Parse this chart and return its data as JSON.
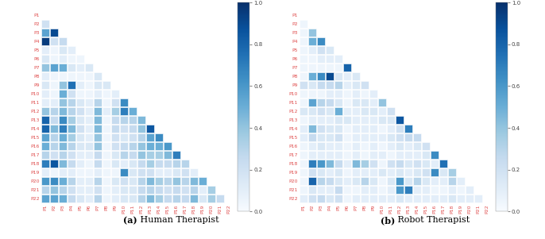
{
  "n": 22,
  "labels": [
    "P1",
    "P2",
    "P3",
    "P4",
    "P5",
    "P6",
    "P7",
    "P8",
    "P9",
    "P10",
    "P11",
    "P12",
    "P13",
    "P14",
    "P15",
    "P16",
    "P17",
    "P18",
    "P19",
    "P20",
    "P21",
    "P22"
  ],
  "title_a_bold": "(a)",
  "title_a_regular": " Human Therapist",
  "title_b_bold": "(b)",
  "title_b_regular": " Robot Therapist",
  "cmap": "Blues",
  "vmin": 0.0,
  "vmax": 1.0,
  "colorbar_ticks": [
    0.0,
    0.2,
    0.4,
    0.6,
    0.8,
    1.0
  ],
  "label_color": "#e05050",
  "figsize": [
    6.86,
    3.01
  ],
  "dpi": 100,
  "human_matrix": [
    [
      0,
      0,
      0,
      0,
      0,
      0,
      0,
      0,
      0,
      0,
      0,
      0,
      0,
      0,
      0,
      0,
      0,
      0,
      0,
      0,
      0,
      0
    ],
    [
      0.2,
      0,
      0,
      0,
      0,
      0,
      0,
      0,
      0,
      0,
      0,
      0,
      0,
      0,
      0,
      0,
      0,
      0,
      0,
      0,
      0,
      0
    ],
    [
      0.55,
      0.9,
      0,
      0,
      0,
      0,
      0,
      0,
      0,
      0,
      0,
      0,
      0,
      0,
      0,
      0,
      0,
      0,
      0,
      0,
      0,
      0
    ],
    [
      0.95,
      0.2,
      0.25,
      0,
      0,
      0,
      0,
      0,
      0,
      0,
      0,
      0,
      0,
      0,
      0,
      0,
      0,
      0,
      0,
      0,
      0,
      0
    ],
    [
      0.1,
      0.05,
      0.15,
      0.1,
      0,
      0,
      0,
      0,
      0,
      0,
      0,
      0,
      0,
      0,
      0,
      0,
      0,
      0,
      0,
      0,
      0,
      0
    ],
    [
      0.15,
      0.05,
      0.1,
      0.05,
      0.05,
      0,
      0,
      0,
      0,
      0,
      0,
      0,
      0,
      0,
      0,
      0,
      0,
      0,
      0,
      0,
      0,
      0
    ],
    [
      0.4,
      0.55,
      0.5,
      0.15,
      0.1,
      0.15,
      0,
      0,
      0,
      0,
      0,
      0,
      0,
      0,
      0,
      0,
      0,
      0,
      0,
      0,
      0,
      0
    ],
    [
      0.1,
      0.05,
      0.05,
      0.05,
      0.05,
      0.05,
      0.15,
      0,
      0,
      0,
      0,
      0,
      0,
      0,
      0,
      0,
      0,
      0,
      0,
      0,
      0,
      0
    ],
    [
      0.15,
      0.05,
      0.4,
      0.75,
      0.1,
      0.05,
      0.15,
      0.15,
      0,
      0,
      0,
      0,
      0,
      0,
      0,
      0,
      0,
      0,
      0,
      0,
      0,
      0
    ],
    [
      0.1,
      0.05,
      0.5,
      0.2,
      0.05,
      0.05,
      0.1,
      0.05,
      0.1,
      0,
      0,
      0,
      0,
      0,
      0,
      0,
      0,
      0,
      0,
      0,
      0,
      0
    ],
    [
      0.1,
      0.1,
      0.4,
      0.3,
      0.15,
      0.1,
      0.3,
      0.05,
      0.2,
      0.65,
      0,
      0,
      0,
      0,
      0,
      0,
      0,
      0,
      0,
      0,
      0,
      0
    ],
    [
      0.4,
      0.3,
      0.45,
      0.3,
      0.2,
      0.1,
      0.45,
      0.1,
      0.35,
      0.7,
      0.5,
      0,
      0,
      0,
      0,
      0,
      0,
      0,
      0,
      0,
      0,
      0
    ],
    [
      0.8,
      0.25,
      0.65,
      0.35,
      0.15,
      0.1,
      0.45,
      0.05,
      0.25,
      0.3,
      0.3,
      0.45,
      0,
      0,
      0,
      0,
      0,
      0,
      0,
      0,
      0,
      0
    ],
    [
      0.8,
      0.45,
      0.7,
      0.45,
      0.2,
      0.1,
      0.45,
      0.05,
      0.25,
      0.2,
      0.25,
      0.4,
      0.85,
      0,
      0,
      0,
      0,
      0,
      0,
      0,
      0,
      0
    ],
    [
      0.55,
      0.3,
      0.5,
      0.35,
      0.15,
      0.1,
      0.4,
      0.05,
      0.2,
      0.15,
      0.2,
      0.3,
      0.55,
      0.65,
      0,
      0,
      0,
      0,
      0,
      0,
      0,
      0
    ],
    [
      0.5,
      0.3,
      0.45,
      0.3,
      0.15,
      0.15,
      0.4,
      0.05,
      0.2,
      0.25,
      0.3,
      0.4,
      0.5,
      0.5,
      0.6,
      0,
      0,
      0,
      0,
      0,
      0,
      0
    ],
    [
      0.3,
      0.2,
      0.3,
      0.2,
      0.1,
      0.1,
      0.25,
      0.05,
      0.15,
      0.3,
      0.25,
      0.4,
      0.35,
      0.35,
      0.45,
      0.7,
      0,
      0,
      0,
      0,
      0,
      0
    ],
    [
      0.7,
      0.85,
      0.45,
      0.25,
      0.1,
      0.05,
      0.25,
      0.05,
      0.15,
      0.1,
      0.15,
      0.25,
      0.35,
      0.25,
      0.25,
      0.3,
      0.3,
      0,
      0,
      0,
      0,
      0
    ],
    [
      0.1,
      0.05,
      0.1,
      0.1,
      0.05,
      0.05,
      0.1,
      0.05,
      0.05,
      0.65,
      0.15,
      0.2,
      0.2,
      0.1,
      0.1,
      0.15,
      0.2,
      0.1,
      0,
      0,
      0,
      0
    ],
    [
      0.6,
      0.65,
      0.5,
      0.3,
      0.1,
      0.1,
      0.3,
      0.05,
      0.15,
      0.2,
      0.15,
      0.3,
      0.45,
      0.35,
      0.3,
      0.4,
      0.3,
      0.45,
      0.5,
      0,
      0,
      0
    ],
    [
      0.3,
      0.4,
      0.3,
      0.2,
      0.1,
      0.1,
      0.2,
      0.05,
      0.1,
      0.15,
      0.15,
      0.25,
      0.3,
      0.25,
      0.2,
      0.25,
      0.2,
      0.3,
      0.1,
      0.35,
      0,
      0
    ],
    [
      0.55,
      0.55,
      0.5,
      0.25,
      0.15,
      0.1,
      0.3,
      0.05,
      0.1,
      0.15,
      0.15,
      0.3,
      0.45,
      0.35,
      0.25,
      0.3,
      0.25,
      0.45,
      0.15,
      0.35,
      0.25,
      0
    ]
  ],
  "robot_matrix": [
    [
      0,
      0,
      0,
      0,
      0,
      0,
      0,
      0,
      0,
      0,
      0,
      0,
      0,
      0,
      0,
      0,
      0,
      0,
      0,
      0,
      0,
      0
    ],
    [
      0.05,
      0,
      0,
      0,
      0,
      0,
      0,
      0,
      0,
      0,
      0,
      0,
      0,
      0,
      0,
      0,
      0,
      0,
      0,
      0,
      0,
      0
    ],
    [
      0.05,
      0.4,
      0,
      0,
      0,
      0,
      0,
      0,
      0,
      0,
      0,
      0,
      0,
      0,
      0,
      0,
      0,
      0,
      0,
      0,
      0,
      0
    ],
    [
      0.05,
      0.5,
      0.65,
      0,
      0,
      0,
      0,
      0,
      0,
      0,
      0,
      0,
      0,
      0,
      0,
      0,
      0,
      0,
      0,
      0,
      0,
      0
    ],
    [
      0.05,
      0.1,
      0.2,
      0.15,
      0,
      0,
      0,
      0,
      0,
      0,
      0,
      0,
      0,
      0,
      0,
      0,
      0,
      0,
      0,
      0,
      0,
      0
    ],
    [
      0.05,
      0.05,
      0.1,
      0.1,
      0.1,
      0,
      0,
      0,
      0,
      0,
      0,
      0,
      0,
      0,
      0,
      0,
      0,
      0,
      0,
      0,
      0,
      0
    ],
    [
      0.05,
      0.05,
      0.05,
      0.05,
      0.05,
      0.8,
      0,
      0,
      0,
      0,
      0,
      0,
      0,
      0,
      0,
      0,
      0,
      0,
      0,
      0,
      0,
      0
    ],
    [
      0.05,
      0.5,
      0.65,
      0.9,
      0.15,
      0.1,
      0.15,
      0,
      0,
      0,
      0,
      0,
      0,
      0,
      0,
      0,
      0,
      0,
      0,
      0,
      0,
      0
    ],
    [
      0.2,
      0.15,
      0.25,
      0.25,
      0.3,
      0.1,
      0.15,
      0.2,
      0,
      0,
      0,
      0,
      0,
      0,
      0,
      0,
      0,
      0,
      0,
      0,
      0,
      0
    ],
    [
      0.05,
      0.05,
      0.05,
      0.1,
      0.1,
      0.05,
      0.1,
      0.05,
      0.1,
      0,
      0,
      0,
      0,
      0,
      0,
      0,
      0,
      0,
      0,
      0,
      0,
      0
    ],
    [
      0.05,
      0.55,
      0.3,
      0.25,
      0.15,
      0.05,
      0.15,
      0.15,
      0.1,
      0.4,
      0,
      0,
      0,
      0,
      0,
      0,
      0,
      0,
      0,
      0,
      0,
      0
    ],
    [
      0.15,
      0.15,
      0.2,
      0.15,
      0.5,
      0.1,
      0.1,
      0.15,
      0.15,
      0.1,
      0.2,
      0,
      0,
      0,
      0,
      0,
      0,
      0,
      0,
      0,
      0,
      0
    ],
    [
      0.05,
      0.1,
      0.1,
      0.1,
      0.15,
      0.15,
      0.1,
      0.1,
      0.1,
      0.15,
      0.15,
      0.85,
      0,
      0,
      0,
      0,
      0,
      0,
      0,
      0,
      0,
      0
    ],
    [
      0.1,
      0.45,
      0.2,
      0.15,
      0.15,
      0.05,
      0.1,
      0.1,
      0.1,
      0.05,
      0.1,
      0.2,
      0.7,
      0,
      0,
      0,
      0,
      0,
      0,
      0,
      0,
      0
    ],
    [
      0.1,
      0.25,
      0.15,
      0.15,
      0.2,
      0.05,
      0.1,
      0.1,
      0.1,
      0.1,
      0.15,
      0.2,
      0.25,
      0.25,
      0,
      0,
      0,
      0,
      0,
      0,
      0,
      0
    ],
    [
      0.05,
      0.1,
      0.15,
      0.1,
      0.1,
      0.05,
      0.1,
      0.05,
      0.1,
      0.05,
      0.1,
      0.15,
      0.1,
      0.15,
      0.2,
      0,
      0,
      0,
      0,
      0,
      0,
      0
    ],
    [
      0.05,
      0.1,
      0.1,
      0.1,
      0.1,
      0.05,
      0.1,
      0.05,
      0.1,
      0.1,
      0.05,
      0.1,
      0.1,
      0.1,
      0.15,
      0.65,
      0,
      0,
      0,
      0,
      0,
      0
    ],
    [
      0.05,
      0.7,
      0.6,
      0.45,
      0.25,
      0.1,
      0.45,
      0.35,
      0.2,
      0.05,
      0.2,
      0.25,
      0.15,
      0.2,
      0.15,
      0.1,
      0.75,
      0,
      0,
      0,
      0,
      0
    ],
    [
      0.05,
      0.2,
      0.15,
      0.1,
      0.15,
      0.05,
      0.1,
      0.1,
      0.1,
      0.15,
      0.1,
      0.15,
      0.1,
      0.15,
      0.2,
      0.65,
      0.15,
      0.35,
      0,
      0,
      0,
      0
    ],
    [
      0.05,
      0.8,
      0.3,
      0.25,
      0.15,
      0.1,
      0.15,
      0.3,
      0.15,
      0.05,
      0.15,
      0.6,
      0.15,
      0.3,
      0.15,
      0.1,
      0.1,
      0.3,
      0.1,
      0,
      0,
      0
    ],
    [
      0.05,
      0.15,
      0.1,
      0.1,
      0.25,
      0.05,
      0.05,
      0.1,
      0.1,
      0.05,
      0.1,
      0.6,
      0.7,
      0.1,
      0.1,
      0.05,
      0.05,
      0.1,
      0.05,
      0.1,
      0,
      0
    ],
    [
      0.1,
      0.2,
      0.25,
      0.15,
      0.2,
      0.05,
      0.1,
      0.1,
      0.1,
      0.1,
      0.1,
      0.15,
      0.1,
      0.1,
      0.1,
      0.1,
      0.1,
      0.15,
      0.1,
      0.1,
      0.1,
      0
    ]
  ]
}
